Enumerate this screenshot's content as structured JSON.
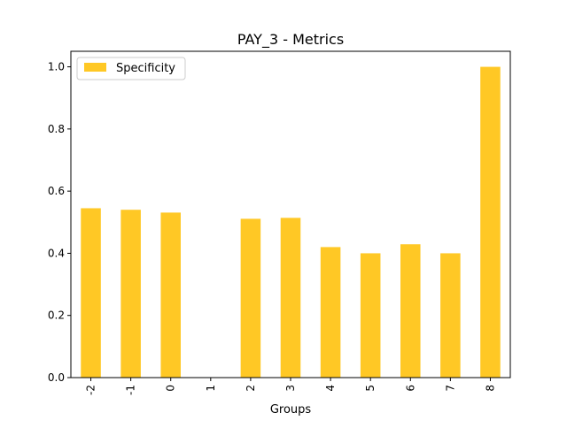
{
  "chart_data": {
    "type": "bar",
    "title": "PAY_3 - Metrics",
    "xlabel": "Groups",
    "ylabel": "",
    "categories": [
      "-2",
      "-1",
      "0",
      "1",
      "2",
      "3",
      "4",
      "5",
      "6",
      "7",
      "8"
    ],
    "series": [
      {
        "name": "Specificity",
        "color": "#ffc825",
        "values": [
          0.545,
          0.54,
          0.531,
          0.0,
          0.511,
          0.514,
          0.42,
          0.4,
          0.429,
          0.4,
          1.0
        ]
      }
    ],
    "ylim": [
      0,
      1.05
    ],
    "yticks": [
      0.0,
      0.2,
      0.4,
      0.6,
      0.8,
      1.0
    ],
    "ytick_labels": [
      "0.0",
      "0.2",
      "0.4",
      "0.6",
      "0.8",
      "1.0"
    ],
    "grid": false,
    "legend_position": "top-left"
  }
}
